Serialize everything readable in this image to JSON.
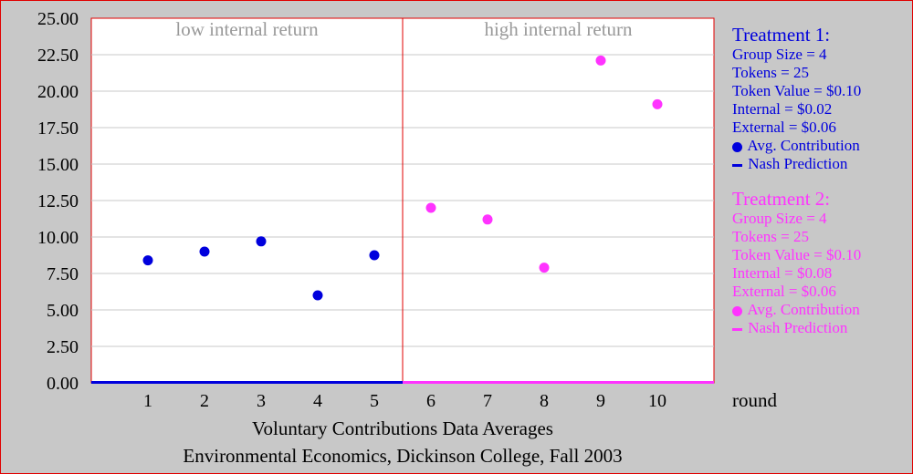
{
  "chart_data": {
    "type": "scatter",
    "x": [
      1,
      2,
      3,
      4,
      5,
      6,
      7,
      8,
      9,
      10
    ],
    "y_ticks": [
      "0.00",
      "2.50",
      "5.00",
      "7.50",
      "10.00",
      "12.50",
      "15.00",
      "17.50",
      "20.00",
      "22.50",
      "25.00"
    ],
    "x_ticks": [
      "1",
      "2",
      "3",
      "4",
      "5",
      "6",
      "7",
      "8",
      "9",
      "10"
    ],
    "ylim": [
      0,
      25
    ],
    "xlim": [
      0,
      11
    ],
    "xlabel": "round",
    "grid": true,
    "regions": [
      {
        "label": "low internal return",
        "x_range": [
          0,
          5.5
        ]
      },
      {
        "label": "high internal return",
        "x_range": [
          5.5,
          11
        ]
      }
    ],
    "series": [
      {
        "name": "Treatment 1 Avg. Contribution",
        "color": "#0000dd",
        "x": [
          1,
          2,
          3,
          4,
          5
        ],
        "values": [
          8.4,
          9.0,
          9.7,
          6.0,
          8.75
        ]
      },
      {
        "name": "Treatment 2 Avg. Contribution",
        "color": "#ff33ff",
        "x": [
          6,
          7,
          8,
          9,
          10
        ],
        "values": [
          12.0,
          11.2,
          7.9,
          22.1,
          19.1
        ]
      },
      {
        "name": "Treatment 1 Nash Prediction",
        "color": "#0000dd",
        "x_range": [
          0,
          5.5
        ],
        "value": 0
      },
      {
        "name": "Treatment 2 Nash Prediction",
        "color": "#ff33ff",
        "x_range": [
          5.5,
          11
        ],
        "value": 0
      }
    ],
    "title_lines": [
      "Voluntary Contributions Data Averages",
      "Environmental Economics, Dickinson College, Fall 2003"
    ]
  },
  "legend": {
    "t1": {
      "color": "#0000dd",
      "title": "Treatment 1:",
      "lines": [
        "Group Size = 4",
        "Tokens = 25",
        "Token Value = $0.10",
        "Internal = $0.02",
        "External = $0.06"
      ],
      "avg": "Avg. Contribution",
      "nash": "Nash Prediction"
    },
    "t2": {
      "color": "#ff33ff",
      "title": "Treatment 2:",
      "lines": [
        "Group Size = 4",
        "Tokens = 25",
        "Token Value = $0.10",
        "Internal = $0.08",
        "External = $0.06"
      ],
      "avg": "Avg. Contribution",
      "nash": "Nash Prediction"
    }
  }
}
